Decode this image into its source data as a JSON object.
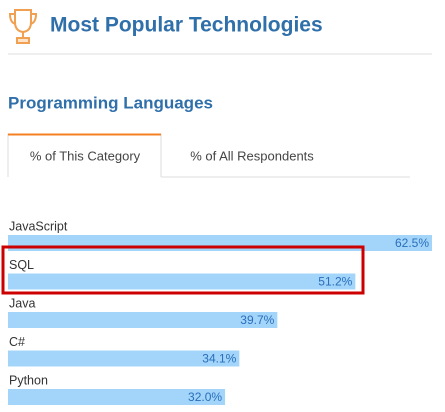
{
  "header": {
    "title": "Most Popular Technologies"
  },
  "tabs": [
    "% of This Category",
    "% of All Respondents"
  ],
  "chart_data": {
    "type": "bar",
    "orientation": "horizontal",
    "title": "Programming Languages",
    "categories": [
      "JavaScript",
      "SQL",
      "Java",
      "C#",
      "Python"
    ],
    "values": [
      62.5,
      51.2,
      39.7,
      34.1,
      32.0
    ],
    "value_labels": [
      "62.5%",
      "51.2%",
      "39.7%",
      "34.1%",
      "32.0%"
    ],
    "color": "#a3d5fa"
  }
}
